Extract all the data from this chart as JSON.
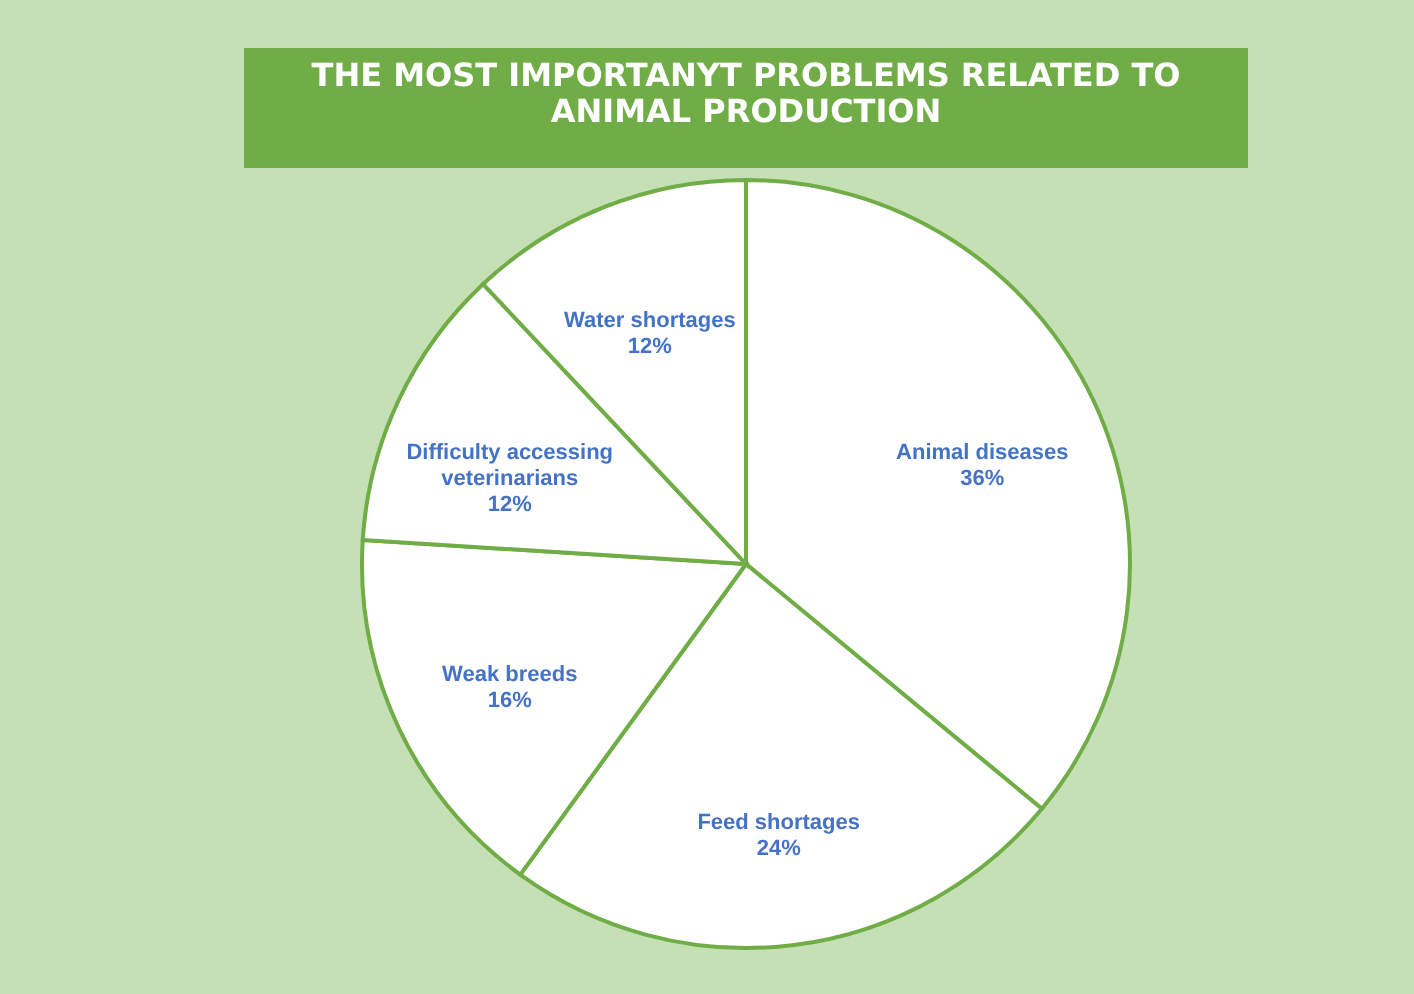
{
  "chart_data": {
    "type": "pie",
    "title": "THE MOST IMPORTANYT PROBLEMS RELATED TO ANIMAL PRODUCTION",
    "categories": [
      "Animal diseases",
      "Feed shortages",
      "Weak breeds",
      "Difficulty accessing veterinarians",
      "Water shortages"
    ],
    "values": [
      36,
      24,
      16,
      12,
      12
    ],
    "value_labels": [
      "36%",
      "24%",
      "16%",
      "12%",
      "12%"
    ],
    "colors": [
      "#ffffff",
      "#ffffff",
      "#ffffff",
      "#ffffff",
      "#ffffff"
    ],
    "legend": false
  }
}
